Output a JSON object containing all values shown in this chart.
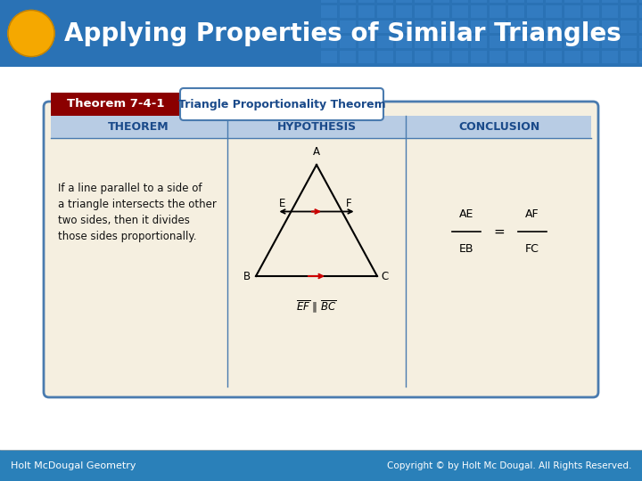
{
  "title": "Applying Properties of Similar Triangles",
  "title_color": "#FFFFFF",
  "circle_color": "#F5A800",
  "theorem_label": "Theorem 7-4-1",
  "theorem_label_bg": "#8B0000",
  "theorem_name": "Triangle Proportionality Theorem",
  "col_headers": [
    "THEOREM",
    "HYPOTHESIS",
    "CONCLUSION"
  ],
  "col_header_bg": "#b8cce4",
  "col_header_color": "#1a4a8a",
  "theorem_text_lines": [
    "If a line parallel to a side of",
    "a triangle intersects the other",
    "two sides, then it divides",
    "those sides proportionally."
  ],
  "table_bg": "#f5efe0",
  "table_border_color": "#4a7baf",
  "header_blue": "#2a72b5",
  "header_tile_color": "#4a8fcc",
  "footer_text_left": "Holt McDougal Geometry",
  "footer_text_right": "Copyright © by Holt Mc Dougal. All Rights Reserved.",
  "footer_blue": "#2a80b9",
  "bg_color": "#d6e4f0",
  "slide_bg": "#FFFFFF"
}
